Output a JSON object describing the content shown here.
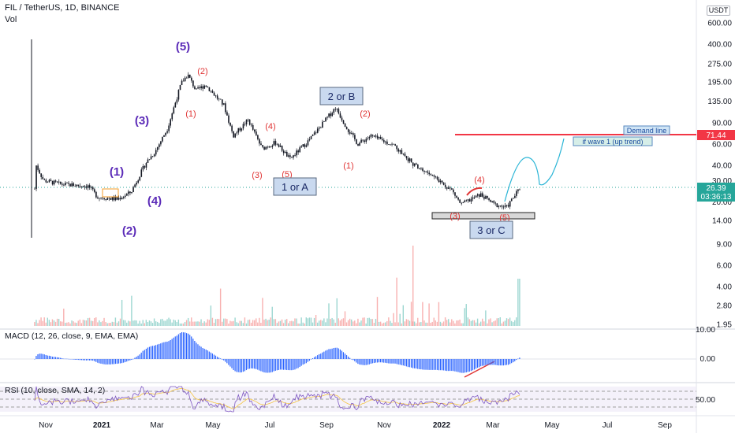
{
  "header": {
    "symbol_line": "FIL / TetherUS, 1D, BINANCE",
    "volume_label": "Vol",
    "currency_button": "USDT"
  },
  "colors": {
    "up": "#26a69a",
    "down": "#ef5350",
    "wave_major": "#5b2bb8",
    "wave_minor": "#e03535",
    "demand_line": "#f23645",
    "projection": "#2bb5d6",
    "macd": "#2962ff",
    "rsi": "#7e57c2",
    "current_price_bg": "#26a69a",
    "box_fill": "#c9d9ef",
    "box_border": "#5a6a80"
  },
  "price_axis": {
    "ticks": [
      "600.00",
      "400.00",
      "275.00",
      "195.00",
      "135.00",
      "90.00",
      "60.00",
      "40.00",
      "30.00",
      "20.00",
      "14.00",
      "9.00",
      "6.00",
      "4.00",
      "2.80",
      "1.95"
    ],
    "demand_price": "71.44",
    "current_price": "26.39",
    "countdown": "03:36:13"
  },
  "macd_axis": {
    "ticks": [
      "10.00",
      "0.00"
    ]
  },
  "rsi_axis": {
    "ticks": [
      "50.00"
    ]
  },
  "time_axis": {
    "ticks": [
      {
        "label": "Nov",
        "bold": false
      },
      {
        "label": "2021",
        "bold": true
      },
      {
        "label": "Mar",
        "bold": false
      },
      {
        "label": "May",
        "bold": false
      },
      {
        "label": "Jul",
        "bold": false
      },
      {
        "label": "Sep",
        "bold": false
      },
      {
        "label": "Nov",
        "bold": false
      },
      {
        "label": "2022",
        "bold": true
      },
      {
        "label": "Mar",
        "bold": false
      },
      {
        "label": "May",
        "bold": false
      },
      {
        "label": "Jul",
        "bold": false
      },
      {
        "label": "Sep",
        "bold": false
      }
    ]
  },
  "indicators": {
    "macd_title": "MACD (12, 26, close, 9, EMA, EMA)",
    "rsi_title": "RSI (10, close, SMA, 14, 2)"
  },
  "annotations": {
    "major_waves": [
      "(1)",
      "(2)",
      "(3)",
      "(4)",
      "(5)"
    ],
    "minor_waves": [
      "(1)",
      "(2)",
      "(3)",
      "(4)",
      "(5)",
      "(1)",
      "(2)",
      "(3)",
      "(4)",
      "(5)"
    ],
    "boxes": [
      "2 or B",
      "1 or A",
      "3 or C"
    ],
    "demand_line_label": "Demand line",
    "scenario_label": "if  wave 1 (up trend)"
  },
  "chart_data": {
    "type": "candlestick",
    "title": "FIL / TetherUS, 1D, BINANCE",
    "y_scale": "log",
    "ylim": [
      1.95,
      600
    ],
    "x_range": [
      "2020-10",
      "2022-09"
    ],
    "price_path": [
      {
        "date": "2020-10-15",
        "close": 10
      },
      {
        "date": "2020-10-20",
        "close": 40
      },
      {
        "date": "2020-10-28",
        "close": 30
      },
      {
        "date": "2020-11-15",
        "close": 28
      },
      {
        "date": "2020-12-15",
        "close": 27
      },
      {
        "date": "2020-12-25",
        "close": 22
      },
      {
        "date": "2021-01-15",
        "close": 21
      },
      {
        "date": "2021-01-30",
        "close": 24
      },
      {
        "date": "2021-02-15",
        "close": 42
      },
      {
        "date": "2021-02-25",
        "close": 52
      },
      {
        "date": "2021-03-10",
        "close": 80
      },
      {
        "date": "2021-03-25",
        "close": 190
      },
      {
        "date": "2021-04-01",
        "close": 225
      },
      {
        "date": "2021-04-10",
        "close": 165
      },
      {
        "date": "2021-04-20",
        "close": 185
      },
      {
        "date": "2021-05-10",
        "close": 125
      },
      {
        "date": "2021-05-20",
        "close": 70
      },
      {
        "date": "2021-06-05",
        "close": 95
      },
      {
        "date": "2021-06-20",
        "close": 55
      },
      {
        "date": "2021-07-05",
        "close": 62
      },
      {
        "date": "2021-07-20",
        "close": 45
      },
      {
        "date": "2021-08-10",
        "close": 65
      },
      {
        "date": "2021-09-07",
        "close": 120
      },
      {
        "date": "2021-09-20",
        "close": 80
      },
      {
        "date": "2021-10-01",
        "close": 60
      },
      {
        "date": "2021-10-15",
        "close": 70
      },
      {
        "date": "2021-11-10",
        "close": 58
      },
      {
        "date": "2021-12-01",
        "close": 40
      },
      {
        "date": "2021-12-20",
        "close": 33
      },
      {
        "date": "2022-01-10",
        "close": 25
      },
      {
        "date": "2022-01-20",
        "close": 19
      },
      {
        "date": "2022-02-10",
        "close": 23
      },
      {
        "date": "2022-02-25",
        "close": 19
      },
      {
        "date": "2022-03-10",
        "close": 18
      },
      {
        "date": "2022-03-25",
        "close": 26.39
      }
    ],
    "projection_path": [
      {
        "date": "2022-03-25",
        "close": 26.39
      },
      {
        "date": "2022-04-20",
        "close": 50
      },
      {
        "date": "2022-05-10",
        "close": 28
      },
      {
        "date": "2022-06-15",
        "close": 78
      }
    ],
    "demand_line": 71.44,
    "current_price": 26.39,
    "support_zone": [
      16,
      18
    ],
    "series": [
      {
        "name": "MACD (12, 26, close, 9, EMA, EMA)",
        "type": "histogram"
      },
      {
        "name": "RSI (10, close, SMA, 14, 2)",
        "type": "line"
      }
    ]
  }
}
